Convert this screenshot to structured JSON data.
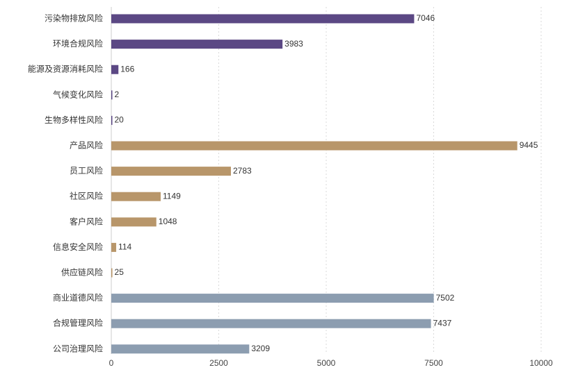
{
  "chart_data": {
    "type": "bar",
    "orientation": "horizontal",
    "title": "",
    "xlabel": "",
    "ylabel": "",
    "xlim": [
      0,
      10000
    ],
    "x_ticks": [
      0,
      2500,
      5000,
      7500,
      10000
    ],
    "x_tick_labels": [
      "0",
      "2500",
      "5000",
      "7500",
      "10000"
    ],
    "grid": true,
    "categories": [
      "污染物排放风险",
      "环境合规风险",
      "能源及资源消耗风险",
      "气候变化风险",
      "生物多样性风险",
      "产品风险",
      "员工风险",
      "社区风险",
      "客户风险",
      "信息安全风险",
      "供应链风险",
      "商业道德风险",
      "合规管理风险",
      "公司治理风险"
    ],
    "values": [
      7046,
      3983,
      166,
      2,
      20,
      9445,
      2783,
      1149,
      1048,
      114,
      25,
      7502,
      7437,
      3209
    ],
    "value_labels": [
      "7046",
      "3983",
      "166",
      "2",
      "20",
      "9445",
      "2783",
      "1149",
      "1048",
      "114",
      "25",
      "7502",
      "7437",
      "3209"
    ],
    "groups": [
      "environment",
      "environment",
      "environment",
      "environment",
      "environment",
      "social",
      "social",
      "social",
      "social",
      "social",
      "social",
      "governance",
      "governance",
      "governance"
    ],
    "colors": {
      "environment": "#5b4884",
      "social": "#b8966a",
      "governance": "#8c9db0"
    }
  }
}
